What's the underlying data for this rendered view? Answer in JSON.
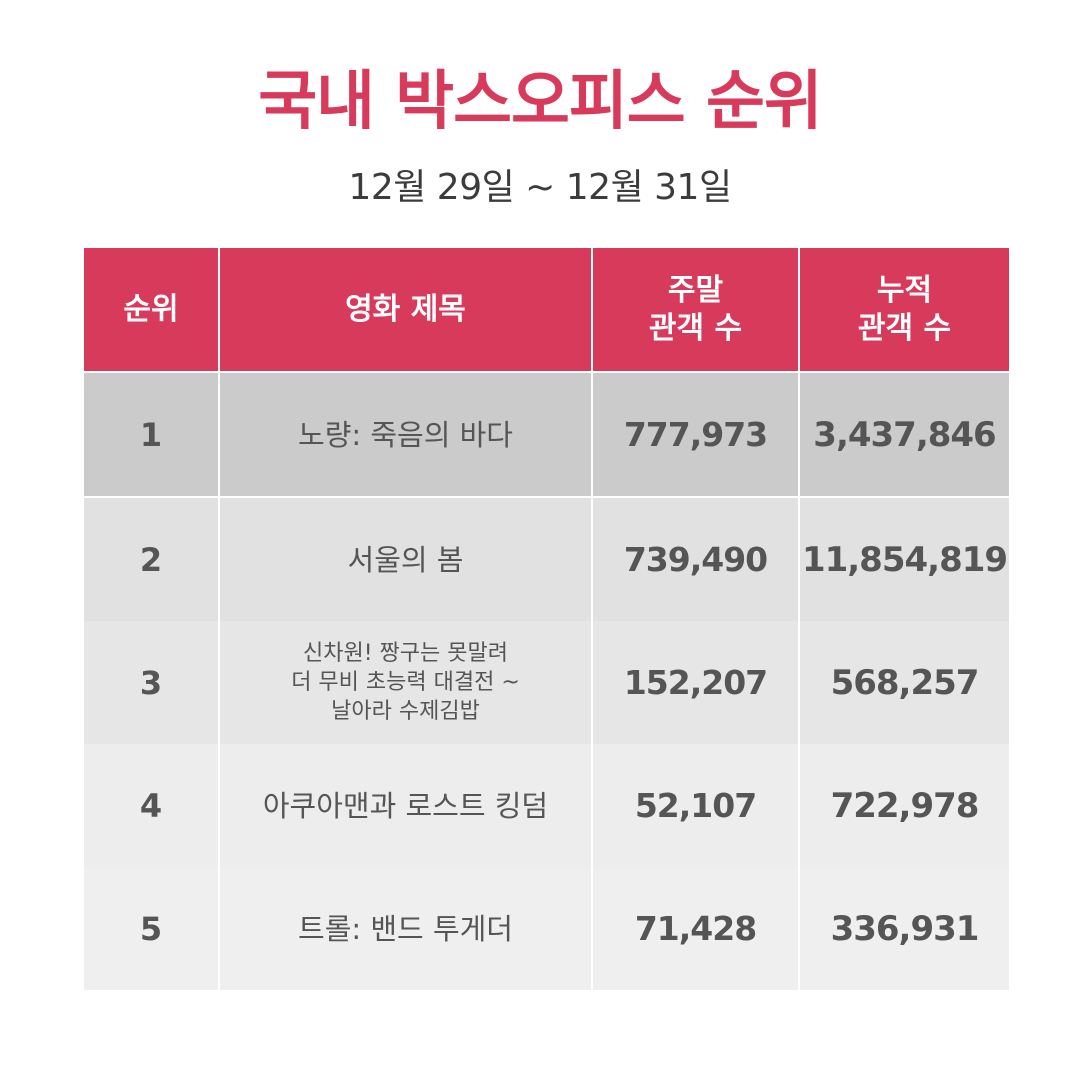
{
  "title": "국내 박스오피스 순위",
  "subtitle": "12월 29일 ~ 12월 31일",
  "colors": {
    "accent": "#d83a5c",
    "row_bg": [
      "#cbcbcb",
      "#e1e1e1",
      "#e6e6e6",
      "#ededed",
      "#efefef"
    ]
  },
  "table": {
    "headers": {
      "rank": "순위",
      "title": "영화 제목",
      "weekend": "주말\n관객 수",
      "cumulative": "누적\n관객 수"
    },
    "rows": [
      {
        "rank": "1",
        "title": "노량: 죽음의 바다",
        "weekend": "777,973",
        "cumulative": "3,437,846"
      },
      {
        "rank": "2",
        "title": "서울의 봄",
        "weekend": "739,490",
        "cumulative": "11,854,819"
      },
      {
        "rank": "3",
        "title": "신차원! 짱구는 못말려\n더 무비 초능력 대결전 ~\n날아라 수제김밥",
        "weekend": "152,207",
        "cumulative": "568,257"
      },
      {
        "rank": "4",
        "title": "아쿠아맨과 로스트 킹덤",
        "weekend": "52,107",
        "cumulative": "722,978"
      },
      {
        "rank": "5",
        "title": "트롤: 밴드 투게더",
        "weekend": "71,428",
        "cumulative": "336,931"
      }
    ]
  }
}
